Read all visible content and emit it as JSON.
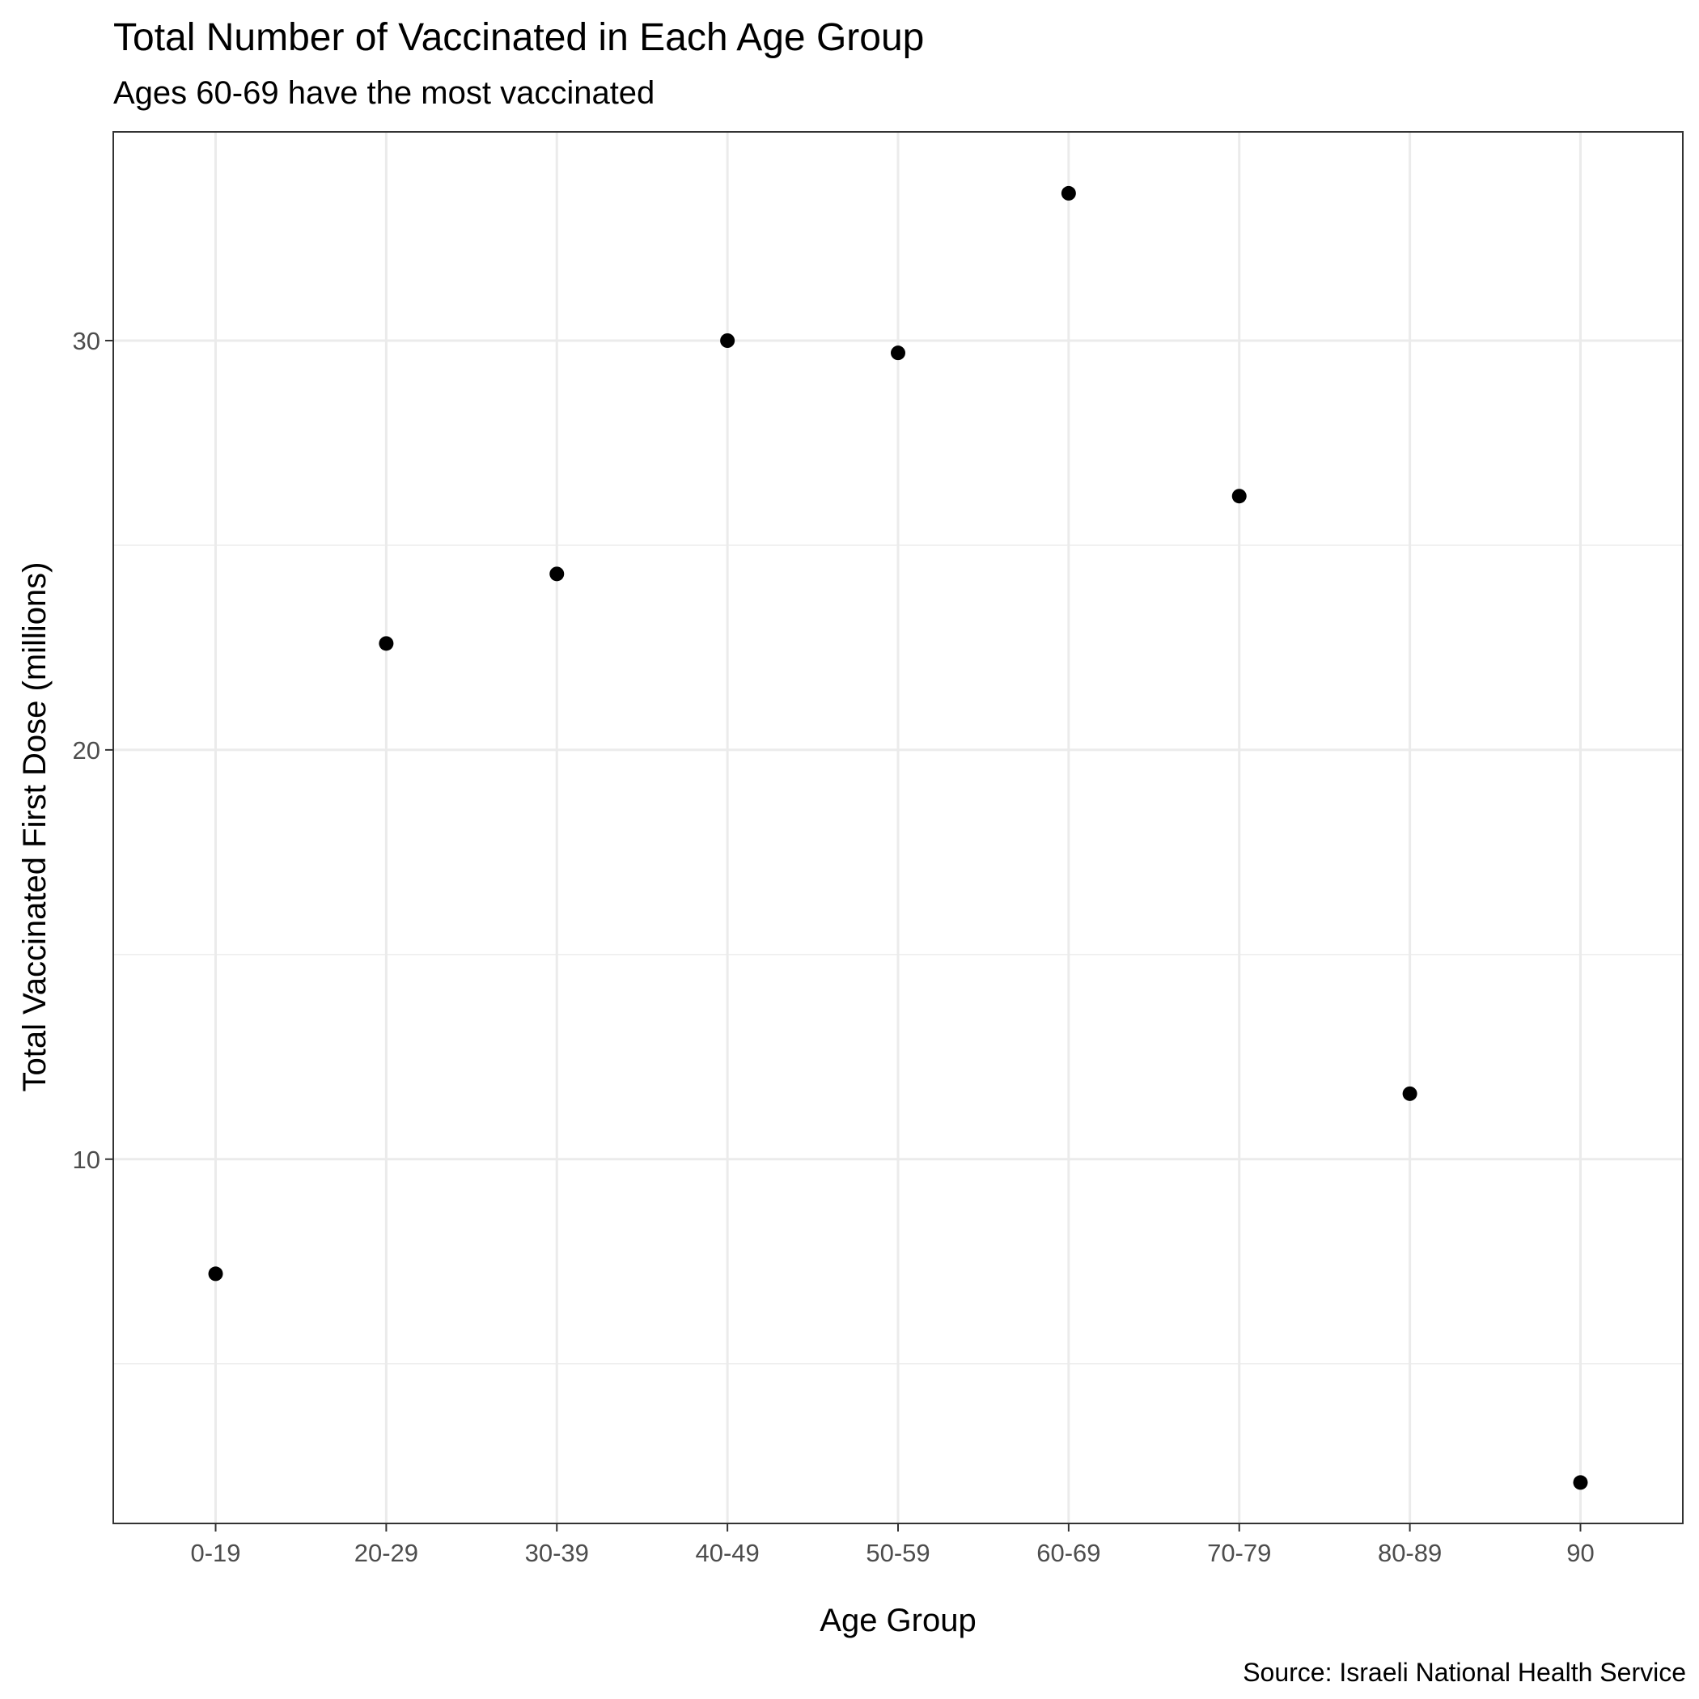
{
  "chart_data": {
    "type": "scatter",
    "title": "Total Number of Vaccinated in Each Age Group",
    "subtitle": "Ages 60-69 have the most vaccinated",
    "xlabel": "Age Group",
    "ylabel": "Total Vaccinated First Dose (millions)",
    "caption": "Source: Israeli National Health Service",
    "categories": [
      "0-19",
      "20-29",
      "30-39",
      "40-49",
      "50-59",
      "60-69",
      "70-79",
      "80-89",
      "90"
    ],
    "values": [
      7.2,
      22.6,
      24.3,
      30.0,
      29.7,
      33.6,
      26.2,
      11.6,
      2.1
    ],
    "ylim": [
      1.1,
      35.1
    ],
    "yticks": [
      10,
      20,
      30
    ],
    "yminor": [
      5,
      15,
      25
    ],
    "grid": true,
    "legend": "none",
    "colors": {
      "points": "#000000",
      "grid": "#ebebeb",
      "panel_border": "#333333",
      "tick_text": "#4d4d4d"
    }
  }
}
